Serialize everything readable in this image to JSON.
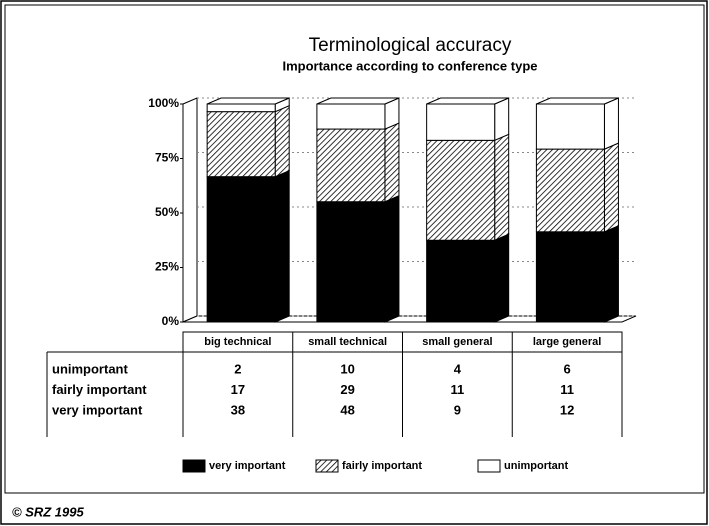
{
  "chart_data": {
    "type": "stacked100",
    "title": "Terminological accuracy",
    "subtitle": "Importance according to conference type",
    "categories": [
      "big technical",
      "small technical",
      "small general",
      "large general"
    ],
    "series": [
      {
        "name": "very important",
        "color": "#000000",
        "values": [
          38,
          48,
          9,
          12
        ]
      },
      {
        "name": "fairly important",
        "color": "hatch",
        "values": [
          17,
          29,
          11,
          11
        ]
      },
      {
        "name": "unimportant",
        "color": "#ffffff",
        "values": [
          2,
          10,
          4,
          6
        ]
      }
    ],
    "ylim": [
      0,
      100
    ],
    "yticks": [
      {
        "value": 0,
        "label": "0%"
      },
      {
        "value": 25,
        "label": "25%"
      },
      {
        "value": 50,
        "label": "50%"
      },
      {
        "value": 75,
        "label": "75%"
      },
      {
        "value": 100,
        "label": "100%"
      }
    ],
    "grid": true,
    "footer": "© SRZ 1995"
  }
}
